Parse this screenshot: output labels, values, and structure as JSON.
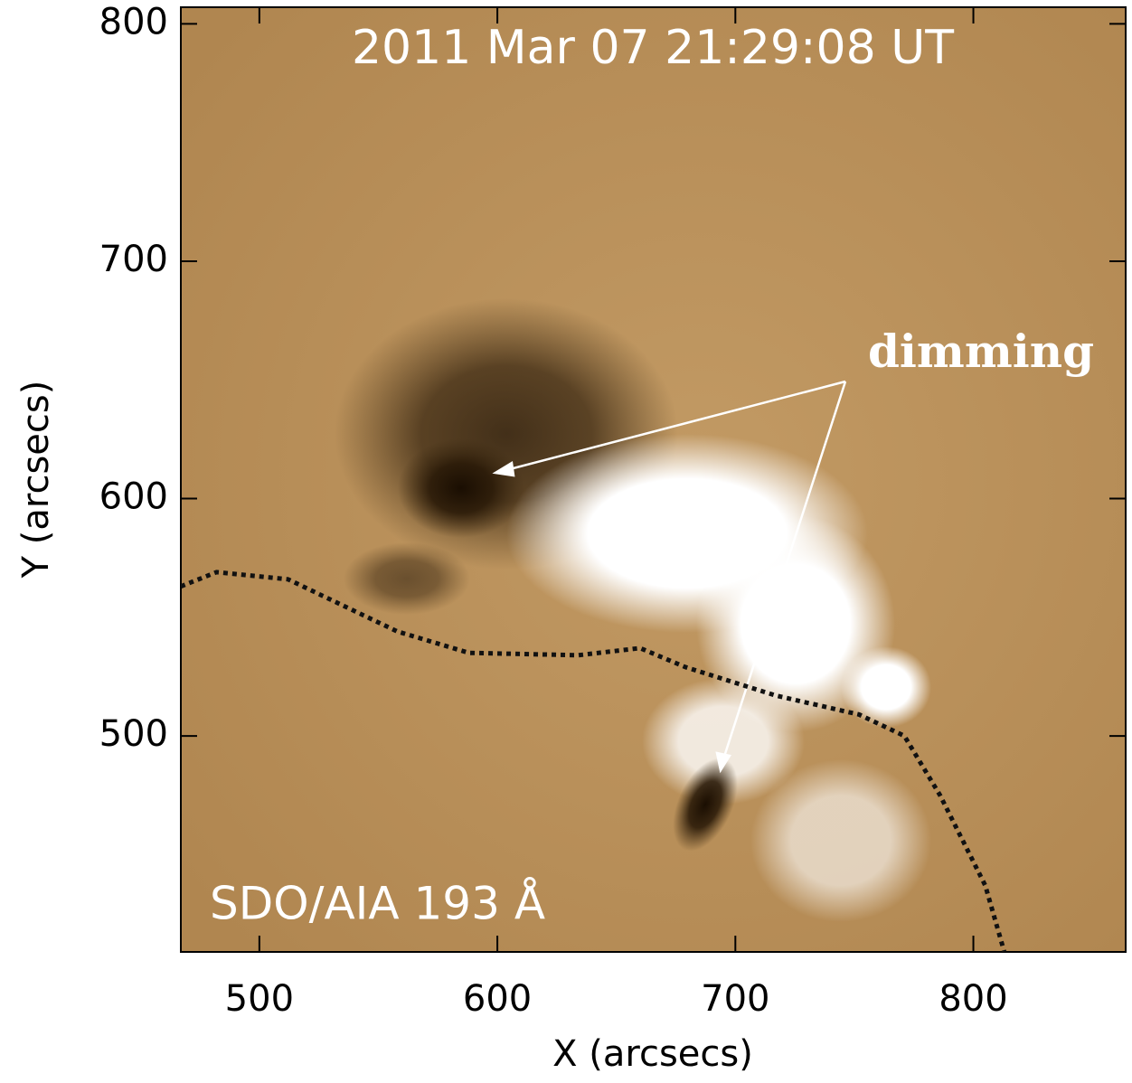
{
  "chart_data": {
    "type": "image",
    "title": "2011 Mar 07 21:29:08 UT",
    "instrument_label": "SDO/AIA 193 Å",
    "annotation": "dimming",
    "x_label": "X (arcsecs)",
    "y_label": "Y (arcsecs)",
    "xlim": [
      467,
      864
    ],
    "ylim": [
      409,
      807
    ],
    "xticks": [
      500,
      600,
      700,
      800
    ],
    "yticks": [
      500,
      600,
      700,
      800
    ],
    "series": [
      {
        "color": "#111111",
        "x": [
          467,
          482,
          512,
          535,
          558,
          588,
          634,
          660,
          679,
          717,
          752,
          771,
          786,
          805,
          813
        ],
        "values": [
          563,
          569,
          566,
          555,
          544,
          535,
          534,
          537,
          529,
          517,
          509,
          500,
          475,
          437,
          409
        ]
      }
    ]
  }
}
